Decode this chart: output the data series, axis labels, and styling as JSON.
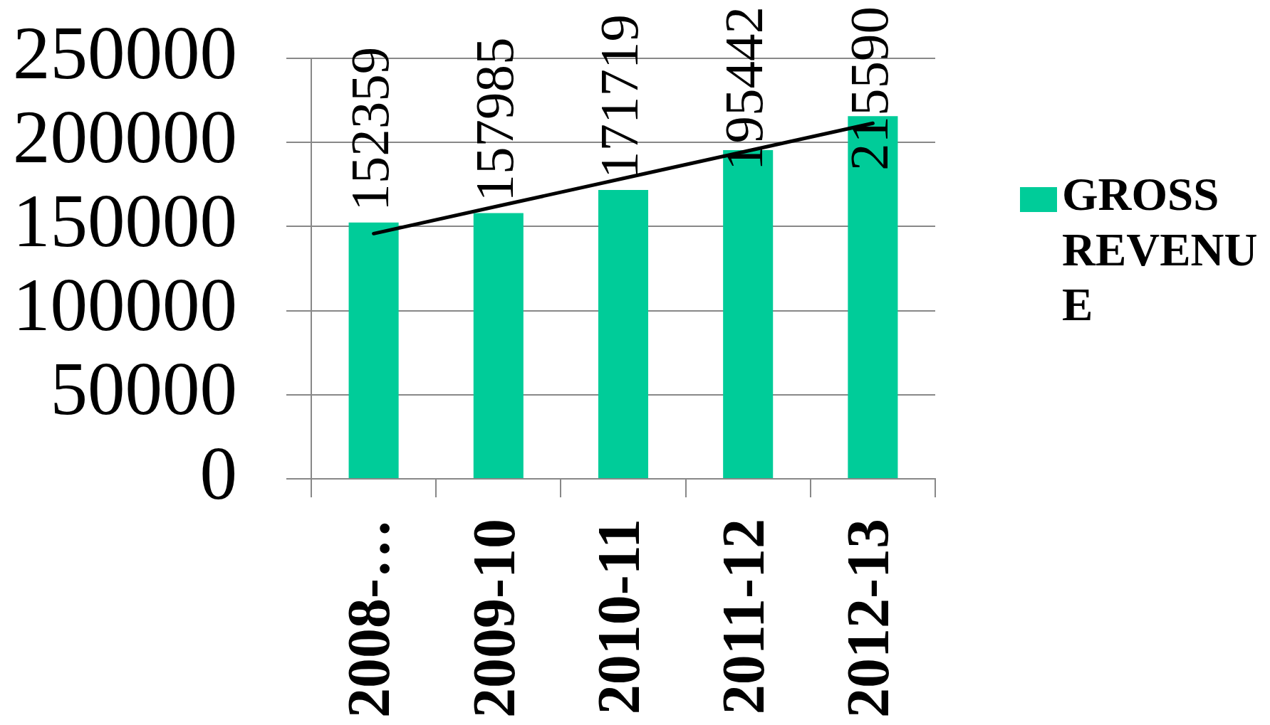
{
  "chart_data": {
    "type": "bar",
    "categories": [
      "2008-…",
      "2009-10",
      "2010-11",
      "2011-12",
      "2012-13"
    ],
    "series": [
      {
        "name": "GROSS REVENUE",
        "color": "#00cc99",
        "values": [
          152359,
          157985,
          171719,
          195442,
          215590
        ],
        "value_labels": [
          "152359",
          "157985",
          "171719",
          "195442",
          "215590"
        ]
      },
      {
        "type": "line",
        "color": "#000000",
        "values": [
          145800,
          162200,
          178600,
          195000,
          211400
        ]
      }
    ],
    "ylim": [
      0,
      250000
    ],
    "yticks": [
      0,
      50000,
      100000,
      150000,
      200000,
      250000
    ],
    "grid": "y",
    "legend": "right",
    "marker": "none"
  }
}
